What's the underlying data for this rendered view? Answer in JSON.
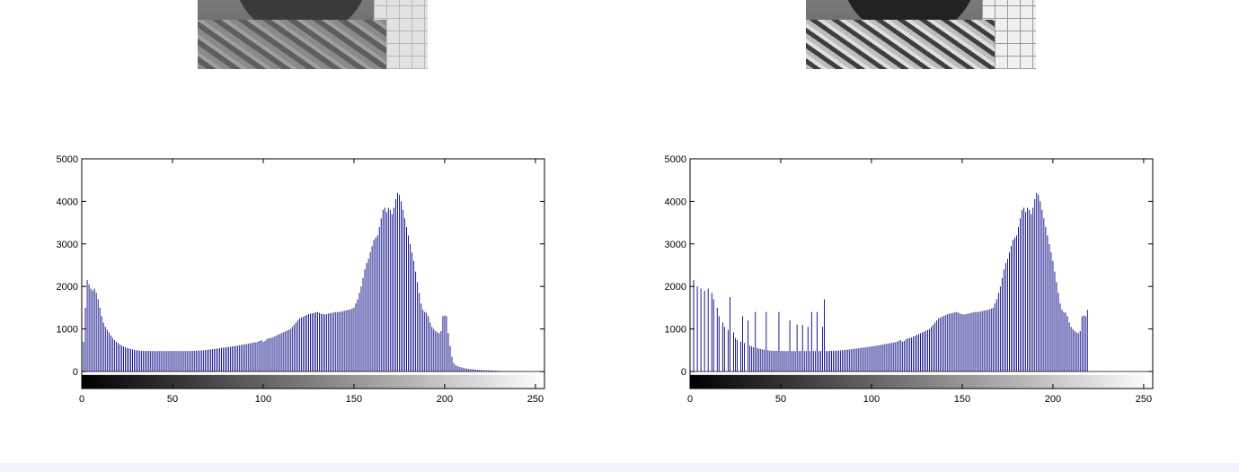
{
  "chart_data": [
    {
      "type": "bar",
      "xlim": [
        0,
        255
      ],
      "ylim": [
        -400,
        5000
      ],
      "xticks": [
        "0",
        "50",
        "100",
        "150",
        "200",
        "250"
      ],
      "yticks": [
        "0",
        "1000",
        "2000",
        "3000",
        "4000",
        "5000"
      ],
      "grid": false,
      "colorbar": "gray",
      "bar_color": "#000080",
      "x_start": 0,
      "values": [
        350,
        700,
        1500,
        2150,
        2050,
        1950,
        1900,
        1950,
        1850,
        1700,
        1500,
        1300,
        1150,
        1050,
        980,
        920,
        850,
        790,
        740,
        700,
        670,
        640,
        610,
        590,
        570,
        555,
        540,
        530,
        520,
        510,
        500,
        495,
        490,
        488,
        487,
        486,
        485,
        484,
        483,
        482,
        482,
        482,
        482,
        482,
        482,
        482,
        482,
        482,
        482,
        482,
        482,
        482,
        482,
        482,
        482,
        482,
        482,
        482,
        483,
        484,
        485,
        486,
        488,
        490,
        492,
        495,
        498,
        502,
        506,
        510,
        515,
        520,
        525,
        530,
        536,
        542,
        548,
        554,
        560,
        566,
        572,
        578,
        584,
        590,
        597,
        604,
        611,
        618,
        626,
        634,
        642,
        650,
        658,
        666,
        674,
        682,
        690,
        700,
        720,
        740,
        700,
        720,
        760,
        780,
        790,
        800,
        820,
        840,
        860,
        880,
        900,
        920,
        940,
        960,
        980,
        1000,
        1050,
        1100,
        1150,
        1200,
        1250,
        1270,
        1290,
        1310,
        1330,
        1350,
        1360,
        1370,
        1380,
        1390,
        1400,
        1380,
        1360,
        1350,
        1340,
        1350,
        1360,
        1370,
        1380,
        1390,
        1400,
        1400,
        1400,
        1410,
        1420,
        1430,
        1440,
        1450,
        1460,
        1480,
        1500,
        1600,
        1700,
        1850,
        2000,
        2200,
        2400,
        2550,
        2650,
        2800,
        2950,
        3100,
        3150,
        3200,
        3400,
        3600,
        3800,
        3850,
        3750,
        3850,
        3800,
        3700,
        3850,
        4050,
        4200,
        4150,
        4000,
        3800,
        3600,
        3400,
        3200,
        3000,
        2800,
        2600,
        2350,
        2100,
        1850,
        1600,
        1450,
        1400,
        1380,
        1300,
        1150,
        1050,
        1000,
        950,
        920,
        900,
        950,
        1300,
        1320,
        1300,
        900,
        600,
        350,
        200,
        150,
        130,
        110,
        100,
        90,
        80,
        70,
        65,
        60,
        55,
        50,
        45,
        40,
        38,
        36,
        34,
        32,
        30,
        28,
        26,
        24,
        22,
        20,
        18,
        16,
        14,
        12,
        10,
        9,
        8,
        7,
        6,
        5,
        5,
        4,
        4,
        3,
        3,
        2,
        2,
        2,
        2,
        2,
        2,
        2,
        2,
        2,
        2,
        2,
        2,
        2
      ]
    },
    {
      "type": "bar",
      "xlim": [
        0,
        255
      ],
      "ylim": [
        -400,
        5000
      ],
      "xticks": [
        "0",
        "50",
        "100",
        "150",
        "200",
        "250"
      ],
      "yticks": [
        "0",
        "1000",
        "2000",
        "3000",
        "4000",
        "5000"
      ],
      "grid": false,
      "colorbar": "gray",
      "bar_color": "#000080",
      "x_start": 0,
      "values": [
        1500,
        0,
        2150,
        0,
        2000,
        0,
        1950,
        0,
        1900,
        0,
        1950,
        0,
        1850,
        1700,
        0,
        1500,
        1300,
        0,
        1150,
        1050,
        0,
        980,
        1750,
        0,
        920,
        790,
        740,
        0,
        700,
        1300,
        670,
        0,
        1200,
        610,
        590,
        570,
        1400,
        555,
        540,
        530,
        520,
        510,
        1400,
        500,
        495,
        490,
        488,
        487,
        486,
        1400,
        485,
        484,
        483,
        482,
        482,
        1200,
        482,
        482,
        482,
        1100,
        482,
        482,
        1100,
        482,
        482,
        1050,
        482,
        1400,
        482,
        482,
        1400,
        482,
        482,
        1050,
        1700,
        483,
        484,
        485,
        486,
        488,
        490,
        492,
        495,
        498,
        502,
        506,
        510,
        515,
        520,
        525,
        530,
        536,
        542,
        548,
        554,
        560,
        566,
        572,
        578,
        584,
        590,
        597,
        604,
        611,
        618,
        626,
        634,
        642,
        650,
        658,
        666,
        674,
        682,
        690,
        700,
        720,
        740,
        700,
        720,
        760,
        780,
        790,
        800,
        820,
        840,
        860,
        880,
        900,
        920,
        940,
        960,
        980,
        1000,
        1050,
        1100,
        1150,
        1200,
        1250,
        1270,
        1290,
        1310,
        1330,
        1350,
        1360,
        1370,
        1380,
        1390,
        1400,
        1380,
        1360,
        1350,
        1340,
        1350,
        1360,
        1370,
        1380,
        1390,
        1400,
        1400,
        1400,
        1410,
        1420,
        1430,
        1440,
        1450,
        1460,
        1480,
        1500,
        1600,
        1700,
        1850,
        2000,
        2200,
        2400,
        2550,
        2650,
        2800,
        2950,
        3100,
        3150,
        3200,
        3400,
        3600,
        3800,
        3850,
        3750,
        3850,
        3800,
        3700,
        3850,
        4050,
        4200,
        4150,
        4000,
        3800,
        3600,
        3400,
        3200,
        3000,
        2800,
        2600,
        2350,
        2100,
        1850,
        1600,
        1450,
        1400,
        1380,
        1300,
        1150,
        1050,
        1000,
        950,
        920,
        900,
        950,
        1300,
        1320,
        1300,
        1450
      ]
    }
  ]
}
